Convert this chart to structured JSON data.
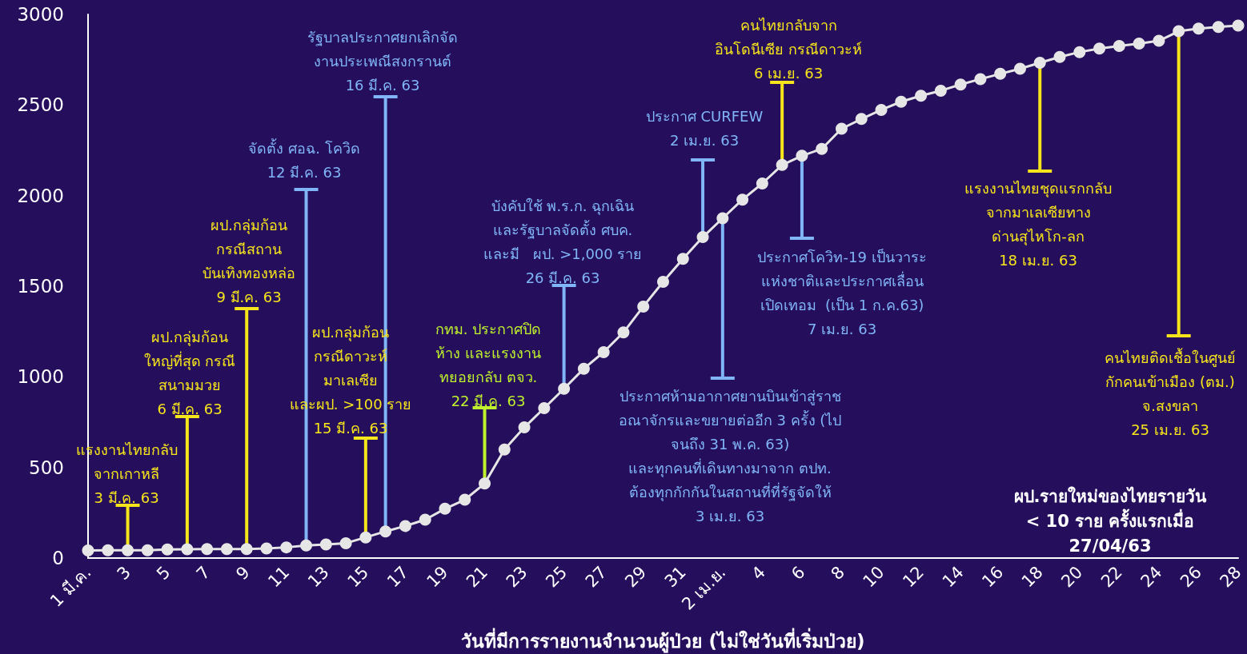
{
  "chart_data": {
    "type": "line",
    "xlabel": "วันที่มีการรายงานจำนวนผู้ป่วย (ไม่ใช่วันที่เริ่มป่วย)",
    "x": [
      "--03-01",
      "--03-02",
      "--03-03",
      "--03-04",
      "--03-05",
      "--03-06",
      "--03-07",
      "--03-08",
      "--03-09",
      "--03-10",
      "--03-11",
      "--03-12",
      "--03-13",
      "--03-14",
      "--03-15",
      "--03-16",
      "--03-17",
      "--03-18",
      "--03-19",
      "--03-20",
      "--03-21",
      "--03-22",
      "--03-23",
      "--03-24",
      "--03-25",
      "--03-26",
      "--03-27",
      "--03-28",
      "--03-29",
      "--03-30",
      "--03-31",
      "--04-01",
      "--04-02",
      "--04-03",
      "--04-04",
      "--04-05",
      "--04-06",
      "--04-07",
      "--04-08",
      "--04-09",
      "--04-10",
      "--04-11",
      "--04-12",
      "--04-13",
      "--04-14",
      "--04-15",
      "--04-16",
      "--04-17",
      "--04-18",
      "--04-19",
      "--04-20",
      "--04-21",
      "--04-22",
      "--04-23",
      "--04-24",
      "--04-25",
      "--04-26",
      "--04-27",
      "--04-28"
    ],
    "series": [
      {
        "color": "#e6e6e6",
        "values": [
          42,
          43,
          43,
          43,
          47,
          48,
          50,
          50,
          50,
          53,
          59,
          70,
          75,
          82,
          114,
          147,
          177,
          212,
          272,
          322,
          411,
          599,
          721,
          827,
          934,
          1045,
          1136,
          1245,
          1388,
          1524,
          1651,
          1771,
          1875,
          1978,
          2067,
          2169,
          2220,
          2258,
          2369,
          2423,
          2473,
          2518,
          2551,
          2579,
          2613,
          2643,
          2672,
          2700,
          2733,
          2765,
          2792,
          2811,
          2826,
          2839,
          2854,
          2907,
          2922,
          2931,
          2938
        ]
      }
    ],
    "xlim": [
      "--03-01",
      "--04-28"
    ],
    "xticks": [
      {
        "value": "--03-01",
        "label": "1 มี.ค."
      },
      {
        "value": "--03-03",
        "label": "3"
      },
      {
        "value": "--03-05",
        "label": "5"
      },
      {
        "value": "--03-07",
        "label": "7"
      },
      {
        "value": "--03-09",
        "label": "9"
      },
      {
        "value": "--03-11",
        "label": "11"
      },
      {
        "value": "--03-13",
        "label": "13"
      },
      {
        "value": "--03-15",
        "label": "15"
      },
      {
        "value": "--03-17",
        "label": "17"
      },
      {
        "value": "--03-19",
        "label": "19"
      },
      {
        "value": "--03-21",
        "label": "21"
      },
      {
        "value": "--03-23",
        "label": "23"
      },
      {
        "value": "--03-25",
        "label": "25"
      },
      {
        "value": "--03-27",
        "label": "27"
      },
      {
        "value": "--03-29",
        "label": "29"
      },
      {
        "value": "--03-31",
        "label": "31"
      },
      {
        "value": "--04-02",
        "label": "2 เม.ย."
      },
      {
        "value": "--04-04",
        "label": "4"
      },
      {
        "value": "--04-06",
        "label": "6"
      },
      {
        "value": "--04-08",
        "label": "8"
      },
      {
        "value": "--04-10",
        "label": "10"
      },
      {
        "value": "--04-12",
        "label": "12"
      },
      {
        "value": "--04-14",
        "label": "14"
      },
      {
        "value": "--04-16",
        "label": "16"
      },
      {
        "value": "--04-18",
        "label": "18"
      },
      {
        "value": "--04-20",
        "label": "20"
      },
      {
        "value": "--04-22",
        "label": "22"
      },
      {
        "value": "--04-24",
        "label": "24"
      },
      {
        "value": "--04-26",
        "label": "26"
      },
      {
        "value": "--04-28",
        "label": "28"
      }
    ],
    "ylim": [
      0,
      3000
    ],
    "yticks": [
      0,
      500,
      1000,
      1500,
      2000,
      2500,
      3000
    ],
    "grid": false,
    "marker": "circle",
    "line_style": "solid",
    "annotations": [
      {
        "text": "แรงงานไทยกลับ\nจากเกาหลี\n3 มี.ค. 63",
        "x": "--03-03",
        "y": 43
      },
      {
        "text": "ผป.กลุ่มก้อน\nใหญ่ที่สุด กรณี\nสนามมวย\n6 มี.ค. 63",
        "x": "--03-06",
        "y": 48
      },
      {
        "text": "ผป.กลุ่มก้อน\nกรณีสถาน\nบันเทิงทองหล่อ\n9 มี.ค. 63",
        "x": "--03-09",
        "y": 50
      },
      {
        "text": "จัดตั้ง ศอฉ. โควิด\n12 มี.ค. 63",
        "x": "--03-12",
        "y": 70
      },
      {
        "text": "ผป.กลุ่มก้อน\nกรณีดาวะห์\nมาเลเซีย\nและผป. >100 ราย\n15 มี.ค. 63",
        "x": "--03-15",
        "y": 114
      },
      {
        "text": "รัฐบาลประกาศยกเลิกจัด\nงานประเพณีสงกรานต์\n16 มี.ค. 63",
        "x": "--03-16",
        "y": 147
      },
      {
        "text": "กทม. ประกาศปิด\nห้าง และแรงงาน\nทยอยกลับ ตจว.\n22 มี.ค. 63",
        "x": "--03-21",
        "y": 411
      },
      {
        "text": "บังคับใช้ พ.ร.ก. ฉุกเฉิน\nและรัฐบาลจัดตั้ง ศบค.\nและมี   ผป. >1,000 ราย\n26 มี.ค. 63",
        "x": "--03-25",
        "y": 934
      },
      {
        "text": "ประกาศ CURFEW\n2 เม.ย. 63",
        "x": "--04-01",
        "y": 1771
      },
      {
        "text": "ประกาศห้ามอากาศยานบินเข้าสู่ราช\nอณาจักรและขยายต่ออีก 3 ครั้ง (ไป\nจนถึง 31 พ.ค. 63)\nและทุกคนที่เดินทางมาจาก ตปท.\nต้องทุกกักกันในสถานที่ที่รัฐจัดให้\n3 เม.ย. 63",
        "x": "--04-02",
        "y": 1875
      },
      {
        "text": "คนไทยกลับจาก\nอินโดนีเซีย กรณีดาวะห์\n6 เม.ย. 63",
        "x": "--04-05",
        "y": 2169
      },
      {
        "text": "ประกาศโควิท-19 เป็นวาระ\nแห่งชาติและประกาศเลื่อน\nเปิดเทอม  (เป็น 1 ก.ค.63)\n7 เม.ย. 63",
        "x": "--04-06",
        "y": 2220
      },
      {
        "text": "แรงงานไทยชุดแรกกลับ\nจากมาเลเซียทาง\nด่านสุไหโก-ลก\n18 เม.ย. 63",
        "x": "--04-18",
        "y": 2733
      },
      {
        "text": "คนไทยติดเชื้อในศูนย์\nกักคนเข้าเมือง (ตม.)\nจ.สงขลา\n25 เม.ย. 63",
        "x": "--04-25",
        "y": 2907
      },
      "ผป.รายใหม่ของไทยรายวัน\n< 10 ราย ครั้งแรกเมื่อ\n27/04/63"
    ]
  }
}
